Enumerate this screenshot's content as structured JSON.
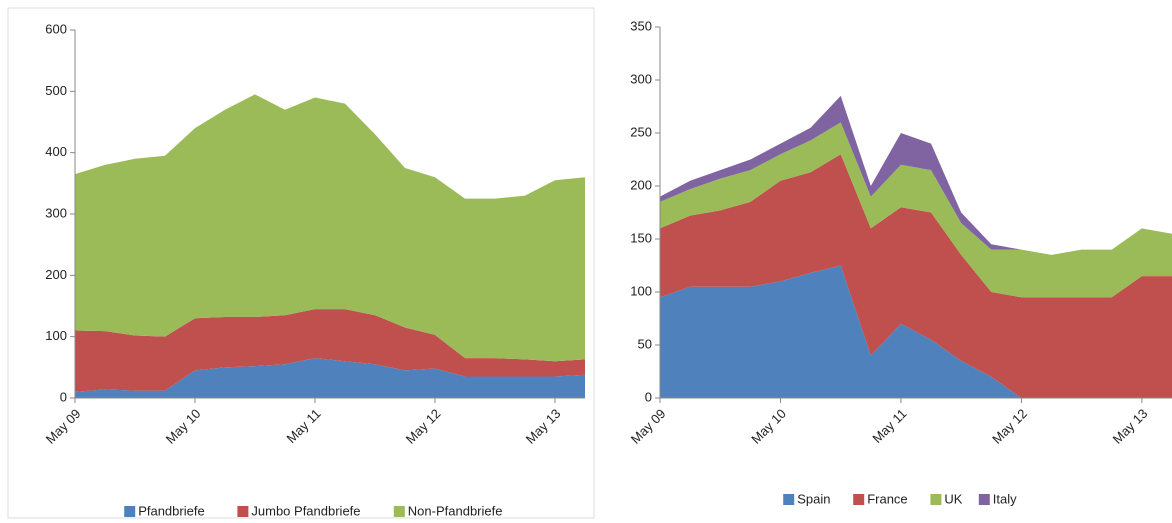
{
  "chart_data": [
    {
      "type": "stacked-area",
      "categories": [
        "May 09",
        null,
        null,
        null,
        "May 10",
        null,
        null,
        null,
        "May 11",
        null,
        null,
        null,
        "May 12",
        null,
        null,
        null,
        "May 13",
        null
      ],
      "ylim": [
        0,
        600
      ],
      "yticks": [
        0,
        100,
        200,
        300,
        400,
        500,
        600
      ],
      "series": [
        {
          "name": "Pfandbriefe",
          "color": "#4f81bd",
          "values": [
            10,
            14,
            12,
            12,
            45,
            50,
            52,
            55,
            65,
            60,
            55,
            45,
            48,
            35,
            35,
            35,
            35,
            38
          ]
        },
        {
          "name": "Jumbo Pfandbriefe",
          "color": "#c0504d",
          "values": [
            100,
            95,
            90,
            88,
            85,
            82,
            80,
            80,
            80,
            85,
            80,
            70,
            55,
            30,
            30,
            28,
            25,
            25
          ]
        },
        {
          "name": "Non-Pfandbriefe",
          "color": "#9bbb59",
          "values": [
            255,
            271,
            288,
            295,
            310,
            338,
            363,
            335,
            345,
            335,
            295,
            260,
            257,
            260,
            260,
            267,
            295,
            297
          ]
        }
      ]
    },
    {
      "type": "stacked-area",
      "categories": [
        "May 09",
        null,
        null,
        null,
        "May 10",
        null,
        null,
        null,
        "May 11",
        null,
        null,
        null,
        "May 12",
        null,
        null,
        null,
        "May 13",
        null
      ],
      "ylim": [
        0,
        350
      ],
      "yticks": [
        0,
        50,
        100,
        150,
        200,
        250,
        300,
        350
      ],
      "series": [
        {
          "name": "Spain",
          "color": "#4f81bd",
          "values": [
            95,
            105,
            105,
            105,
            110,
            118,
            125,
            40,
            70,
            55,
            35,
            20,
            0,
            0,
            0,
            0,
            0,
            0
          ]
        },
        {
          "name": "France",
          "color": "#c0504d",
          "values": [
            65,
            67,
            72,
            80,
            95,
            95,
            105,
            120,
            110,
            120,
            100,
            80,
            95,
            95,
            95,
            95,
            115,
            115
          ]
        },
        {
          "name": "UK",
          "color": "#9bbb59",
          "values": [
            25,
            25,
            30,
            30,
            25,
            30,
            30,
            30,
            40,
            40,
            30,
            40,
            45,
            40,
            45,
            45,
            45,
            40
          ]
        },
        {
          "name": "Italy",
          "color": "#8064a2",
          "values": [
            5,
            8,
            8,
            10,
            10,
            12,
            25,
            10,
            30,
            25,
            10,
            5,
            0,
            0,
            0,
            0,
            0,
            0
          ]
        }
      ]
    }
  ]
}
